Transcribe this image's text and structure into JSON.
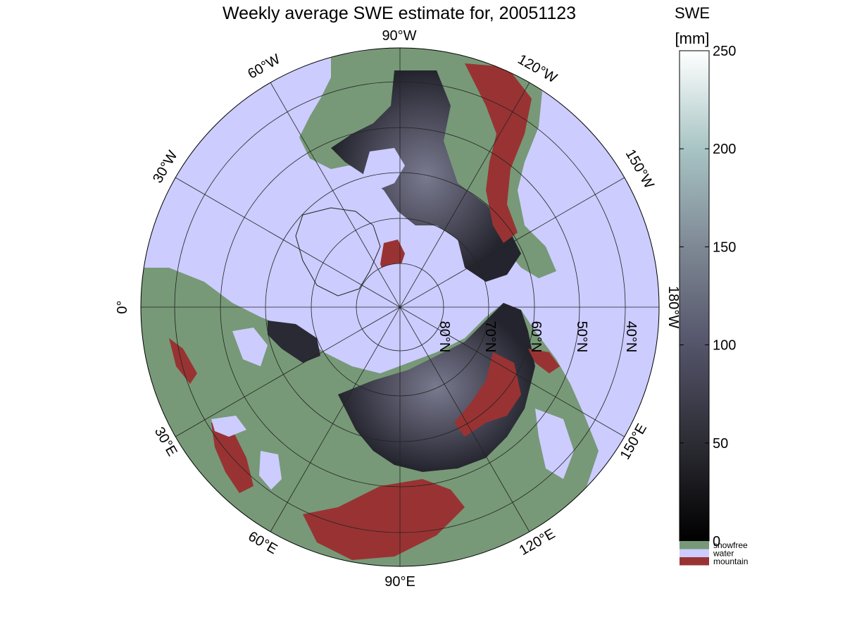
{
  "title": "Weekly average SWE estimate for, 20051123",
  "colorbar": {
    "label_line1": "SWE",
    "label_line2": "[mm]",
    "ticks": [
      "0",
      "50",
      "100",
      "150",
      "200",
      "250"
    ],
    "range": [
      0,
      250
    ],
    "categories": [
      {
        "label": "snowfree",
        "color": "#779977"
      },
      {
        "label": "water",
        "color": "#ccccff"
      },
      {
        "label": "mountain",
        "color": "#993333"
      }
    ]
  },
  "map": {
    "projection": "north polar stereographic",
    "longitude_labels": {
      "lon_90W": "90°W",
      "lon_120W": "120°W",
      "lon_150W": "150°W",
      "lon_180W": "180°W",
      "lon_150E": "150°E",
      "lon_120E": "120°E",
      "lon_90E": "90°E",
      "lon_60E": "60°E",
      "lon_30E": "30°E",
      "lon_0": "0°",
      "lon_30W": "30°W",
      "lon_60W": "60°W"
    },
    "latitude_labels": {
      "lat_80": "80°N",
      "lat_70": "70°N",
      "lat_60": "60°N",
      "lat_50": "50°N",
      "lat_40": "40°N"
    },
    "colors": {
      "water": "#ccccff",
      "snowfree": "#779977",
      "mountain": "#993333",
      "snow_low": "#111116",
      "snow_mid": "#4a4a5e",
      "snow_high": "#8a8a9e"
    }
  }
}
